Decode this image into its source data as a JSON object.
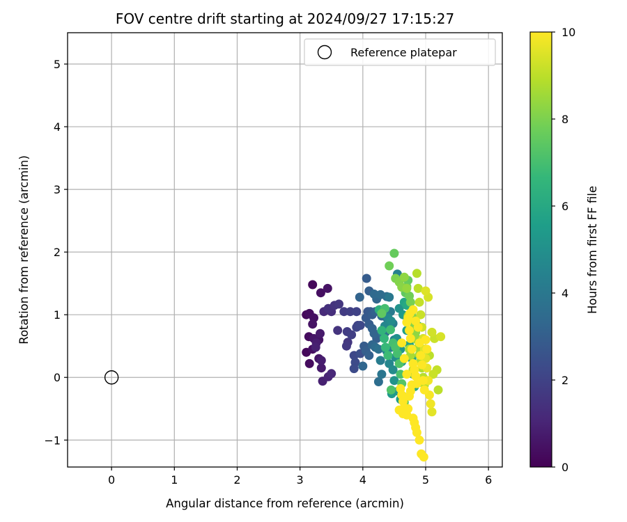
{
  "chart_data": {
    "type": "scatter",
    "title": "FOV centre drift starting at 2024/09/27 17:15:27",
    "xlabel": "Angular distance from reference (arcmin)",
    "ylabel": "Rotation from reference (arcmin)",
    "xlim": [
      -0.7,
      6.22
    ],
    "ylim": [
      -1.43,
      5.5
    ],
    "x_ticks": [
      "0",
      "1",
      "2",
      "3",
      "4",
      "5",
      "6"
    ],
    "x_tick_values": [
      0,
      1,
      2,
      3,
      4,
      5,
      6
    ],
    "y_ticks": [
      "−1",
      "0",
      "1",
      "2",
      "3",
      "4",
      "5"
    ],
    "y_tick_values": [
      -1,
      0,
      1,
      2,
      3,
      4,
      5
    ],
    "grid": true,
    "legend": {
      "label": "Reference platepar",
      "placement": "top-right"
    },
    "reference_point": {
      "x": 0,
      "y": 0,
      "label": "Reference platepar"
    },
    "colorbar": {
      "label": "Hours from first FF file",
      "colormap": "viridis",
      "range": [
        0,
        10
      ],
      "ticks": [
        "0",
        "2",
        "4",
        "6",
        "8",
        "10"
      ],
      "tick_values": [
        0,
        2,
        4,
        6,
        8,
        10
      ]
    },
    "colormap_stops": [
      "#440154",
      "#482878",
      "#3e4989",
      "#31688e",
      "#26828e",
      "#1f9e89",
      "#35b779",
      "#6ece58",
      "#b5de2b",
      "#fde725"
    ],
    "series": [
      {
        "points": [
          [
            3.2,
            1.48,
            0.2
          ],
          [
            3.33,
            1.35,
            0.4
          ],
          [
            3.44,
            1.42,
            0.5
          ],
          [
            3.1,
            1.0,
            0.2
          ],
          [
            3.15,
            1.02,
            0.3
          ],
          [
            3.22,
            0.95,
            0.4
          ],
          [
            3.2,
            0.85,
            0.5
          ],
          [
            3.14,
            0.65,
            0.3
          ],
          [
            3.22,
            0.62,
            0.6
          ],
          [
            3.3,
            0.6,
            0.5
          ],
          [
            3.32,
            0.7,
            0.7
          ],
          [
            3.26,
            0.55,
            0.8
          ],
          [
            3.1,
            0.4,
            0.2
          ],
          [
            3.2,
            0.45,
            0.4
          ],
          [
            3.25,
            0.48,
            0.9
          ],
          [
            3.15,
            0.22,
            0.3
          ],
          [
            3.3,
            0.3,
            0.6
          ],
          [
            3.34,
            0.27,
            0.8
          ],
          [
            3.34,
            0.15,
            0.7
          ],
          [
            3.36,
            -0.06,
            0.9
          ],
          [
            3.45,
            0.01,
            1.0
          ],
          [
            3.5,
            0.06,
            1.1
          ],
          [
            3.38,
            1.05,
            1.2
          ],
          [
            3.45,
            1.1,
            1.4
          ],
          [
            3.5,
            1.05,
            1.3
          ],
          [
            3.55,
            1.15,
            1.5
          ],
          [
            3.62,
            1.17,
            1.6
          ],
          [
            3.7,
            1.05,
            1.8
          ],
          [
            3.8,
            1.05,
            1.9
          ],
          [
            3.9,
            1.05,
            2.0
          ],
          [
            3.6,
            0.75,
            1.5
          ],
          [
            3.75,
            0.73,
            1.8
          ],
          [
            3.82,
            0.68,
            1.9
          ],
          [
            3.9,
            0.8,
            2.1
          ],
          [
            3.74,
            0.5,
            1.7
          ],
          [
            3.76,
            0.56,
            1.6
          ],
          [
            3.86,
            0.35,
            2.2
          ],
          [
            3.88,
            0.24,
            2.3
          ],
          [
            3.86,
            0.14,
            2.3
          ],
          [
            3.96,
            0.38,
            2.4
          ],
          [
            3.92,
            0.83,
            2.0
          ],
          [
            3.96,
            0.83,
            2.2
          ],
          [
            4.06,
            1.58,
            2.9
          ],
          [
            4.1,
            1.38,
            3.0
          ],
          [
            4.08,
            1.05,
            2.7
          ],
          [
            4.12,
            1.05,
            2.8
          ],
          [
            4.15,
            1.0,
            2.9
          ],
          [
            4.2,
            1.05,
            3.1
          ],
          [
            3.95,
            1.28,
            3.2
          ],
          [
            4.22,
            1.25,
            3.3
          ],
          [
            4.28,
            1.32,
            3.5
          ],
          [
            4.38,
            1.29,
            3.6
          ],
          [
            4.05,
            0.95,
            2.8
          ],
          [
            4.1,
            0.85,
            2.9
          ],
          [
            4.15,
            0.78,
            3.1
          ],
          [
            4.18,
            0.7,
            3.2
          ],
          [
            4.22,
            0.62,
            3.0
          ],
          [
            4.3,
            0.98,
            3.4
          ],
          [
            4.38,
            0.95,
            3.6
          ],
          [
            4.02,
            0.5,
            2.9
          ],
          [
            4.05,
            0.42,
            3.0
          ],
          [
            4.1,
            0.35,
            3.1
          ],
          [
            4.15,
            0.52,
            3.3
          ],
          [
            4.2,
            0.48,
            3.5
          ],
          [
            4.25,
            0.45,
            3.7
          ],
          [
            4.0,
            0.18,
            3.3
          ],
          [
            4.25,
            -0.07,
            3.6
          ],
          [
            4.3,
            0.05,
            3.9
          ],
          [
            4.32,
            0.68,
            3.8
          ],
          [
            4.36,
            0.72,
            3.9
          ],
          [
            4.18,
            1.33,
            3.4
          ],
          [
            4.42,
            1.28,
            4.0
          ],
          [
            4.44,
            1.05,
            4.1
          ],
          [
            4.48,
            0.86,
            4.2
          ],
          [
            4.5,
            0.6,
            4.3
          ],
          [
            4.45,
            0.48,
            4.4
          ],
          [
            4.55,
            1.65,
            4.3
          ],
          [
            4.6,
            1.58,
            4.5
          ],
          [
            4.28,
            0.27,
            4.2
          ],
          [
            4.38,
            0.42,
            4.5
          ],
          [
            4.42,
            0.22,
            4.6
          ],
          [
            4.48,
            0.12,
            4.8
          ],
          [
            4.52,
            0.32,
            4.9
          ],
          [
            4.35,
            0.82,
            4.6
          ],
          [
            4.4,
            0.95,
            4.7
          ],
          [
            4.45,
            0.9,
            4.8
          ],
          [
            4.54,
            0.62,
            5.0
          ],
          [
            4.58,
            1.1,
            5.1
          ],
          [
            4.6,
            0.45,
            5.2
          ],
          [
            4.62,
            0.25,
            5.3
          ],
          [
            4.5,
            -0.05,
            5.1
          ],
          [
            4.56,
            -0.22,
            5.3
          ],
          [
            4.6,
            -0.35,
            5.5
          ],
          [
            4.64,
            1.0,
            5.4
          ],
          [
            4.7,
            0.75,
            5.6
          ],
          [
            4.74,
            0.52,
            5.7
          ],
          [
            4.78,
            0.3,
            5.8
          ],
          [
            4.8,
            0.05,
            5.9
          ],
          [
            4.82,
            -0.15,
            6.0
          ],
          [
            4.88,
            0.82,
            6.2
          ],
          [
            4.9,
            0.6,
            6.3
          ],
          [
            4.92,
            0.4,
            6.4
          ],
          [
            4.46,
            -0.26,
            5.4
          ],
          [
            4.66,
            1.2,
            5.8
          ],
          [
            4.7,
            1.15,
            6.0
          ],
          [
            4.75,
            0.92,
            6.1
          ],
          [
            4.26,
            1.08,
            6.3
          ],
          [
            4.3,
            0.75,
            6.5
          ],
          [
            4.34,
            0.62,
            6.6
          ],
          [
            4.36,
            0.48,
            6.7
          ],
          [
            4.4,
            0.35,
            6.8
          ],
          [
            4.44,
            0.76,
            6.9
          ],
          [
            4.48,
            0.55,
            7.0
          ],
          [
            4.52,
            0.48,
            7.1
          ],
          [
            4.55,
            0.38,
            7.0
          ],
          [
            4.58,
            0.22,
            7.2
          ],
          [
            4.6,
            0.05,
            7.1
          ],
          [
            4.62,
            -0.1,
            7.3
          ],
          [
            4.64,
            -0.3,
            7.4
          ],
          [
            4.66,
            -0.4,
            7.6
          ],
          [
            4.68,
            1.35,
            7.5
          ],
          [
            4.7,
            1.45,
            7.7
          ],
          [
            4.72,
            1.55,
            7.6
          ],
          [
            4.74,
            1.3,
            7.8
          ],
          [
            4.76,
            1.2,
            7.9
          ],
          [
            4.78,
            1.05,
            8.0
          ],
          [
            4.8,
            0.95,
            8.1
          ],
          [
            4.82,
            0.85,
            8.2
          ],
          [
            4.84,
            0.72,
            8.3
          ],
          [
            4.86,
            0.6,
            8.4
          ],
          [
            4.88,
            0.48,
            8.5
          ],
          [
            4.9,
            0.36,
            8.6
          ],
          [
            4.92,
            0.25,
            8.7
          ],
          [
            4.94,
            0.15,
            8.8
          ],
          [
            4.96,
            0.0,
            8.9
          ],
          [
            4.98,
            -0.12,
            9.0
          ],
          [
            4.3,
            1.02,
            7.5
          ],
          [
            4.35,
            1.1,
            7.0
          ],
          [
            4.5,
            1.98,
            7.6
          ],
          [
            4.42,
            1.78,
            7.8
          ],
          [
            4.45,
            -0.2,
            7.2
          ],
          [
            4.52,
            1.58,
            8.0
          ],
          [
            4.58,
            1.52,
            8.1
          ],
          [
            4.62,
            1.44,
            8.2
          ],
          [
            4.66,
            1.6,
            8.3
          ],
          [
            4.7,
            1.42,
            8.4
          ],
          [
            4.72,
            0.98,
            8.5
          ],
          [
            4.74,
            0.45,
            8.6
          ],
          [
            4.76,
            0.35,
            8.7
          ],
          [
            4.8,
            0.12,
            8.8
          ],
          [
            4.86,
            1.66,
            8.9
          ],
          [
            4.88,
            1.42,
            9.0
          ],
          [
            4.9,
            1.2,
            9.1
          ],
          [
            4.92,
            1.0,
            9.2
          ],
          [
            4.94,
            0.8,
            9.3
          ],
          [
            4.96,
            0.62,
            9.4
          ],
          [
            4.98,
            0.45,
            9.5
          ],
          [
            5.0,
            0.3,
            9.6
          ],
          [
            5.02,
            0.15,
            9.7
          ],
          [
            5.04,
            -0.05,
            9.8
          ],
          [
            5.06,
            -0.28,
            9.9
          ],
          [
            5.08,
            -0.42,
            9.8
          ],
          [
            5.1,
            -0.55,
            9.6
          ],
          [
            5.0,
            1.38,
            9.5
          ],
          [
            5.04,
            1.28,
            9.4
          ],
          [
            5.1,
            0.72,
            9.3
          ],
          [
            5.14,
            0.62,
            9.2
          ],
          [
            5.18,
            0.12,
            9.1
          ],
          [
            5.2,
            -0.2,
            9.0
          ],
          [
            5.24,
            0.65,
            9.4
          ],
          [
            5.06,
            0.35,
            9.0
          ],
          [
            5.12,
            0.05,
            9.2
          ],
          [
            4.6,
            -0.18,
            10.0
          ],
          [
            4.62,
            -0.28,
            10.0
          ],
          [
            4.64,
            -0.38,
            10.0
          ],
          [
            4.66,
            -0.48,
            10.0
          ],
          [
            4.68,
            -0.55,
            10.0
          ],
          [
            4.7,
            -0.6,
            10.0
          ],
          [
            4.72,
            -0.5,
            10.0
          ],
          [
            4.74,
            -0.3,
            10.0
          ],
          [
            4.76,
            -0.22,
            10.0
          ],
          [
            4.78,
            -0.12,
            10.0
          ],
          [
            4.8,
            -0.65,
            10.0
          ],
          [
            4.82,
            -0.72,
            10.0
          ],
          [
            4.84,
            -0.8,
            10.0
          ],
          [
            4.86,
            -0.88,
            10.0
          ],
          [
            4.9,
            -1.0,
            10.0
          ],
          [
            4.93,
            -1.22,
            10.0
          ],
          [
            4.97,
            -1.27,
            10.0
          ],
          [
            4.62,
            0.55,
            10.0
          ],
          [
            4.66,
            0.3,
            10.0
          ],
          [
            4.7,
            0.05,
            10.0
          ],
          [
            4.72,
            0.95,
            10.0
          ],
          [
            4.74,
            0.75,
            10.0
          ],
          [
            4.76,
            0.62,
            10.0
          ],
          [
            4.78,
            0.45,
            10.0
          ],
          [
            4.8,
            0.22,
            10.0
          ],
          [
            4.82,
            0.12,
            10.0
          ],
          [
            4.84,
            0.02,
            10.0
          ],
          [
            4.86,
            -0.1,
            10.0
          ],
          [
            4.88,
            0.8,
            10.0
          ],
          [
            4.9,
            0.55,
            10.0
          ],
          [
            4.92,
            0.35,
            10.0
          ],
          [
            4.94,
            0.2,
            10.0
          ],
          [
            4.96,
            -0.05,
            10.0
          ],
          [
            4.98,
            -0.2,
            10.0
          ],
          [
            4.58,
            -0.52,
            10.0
          ],
          [
            4.64,
            -0.58,
            10.0
          ],
          [
            4.7,
            0.88,
            10.0
          ],
          [
            4.75,
            1.02,
            10.0
          ],
          [
            4.8,
            1.08,
            10.0
          ],
          [
            4.84,
            0.9,
            10.0
          ],
          [
            5.0,
            0.6,
            10.0
          ],
          [
            5.02,
            0.45,
            10.0
          ]
        ]
      }
    ]
  }
}
